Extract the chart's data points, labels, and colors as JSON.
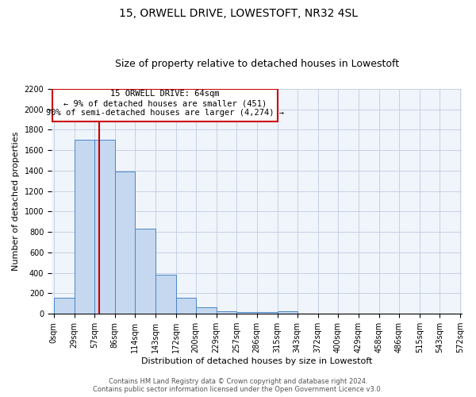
{
  "title": "15, ORWELL DRIVE, LOWESTOFT, NR32 4SL",
  "subtitle": "Size of property relative to detached houses in Lowestoft",
  "xlabel": "Distribution of detached houses by size in Lowestoft",
  "ylabel": "Number of detached properties",
  "bar_values": [
    155,
    1700,
    1700,
    1390,
    830,
    385,
    160,
    65,
    25,
    20,
    20,
    25,
    0,
    0,
    0,
    0,
    0,
    0,
    0,
    0
  ],
  "bin_edges": [
    0,
    29,
    57,
    86,
    114,
    143,
    172,
    200,
    229,
    257,
    286,
    315,
    343,
    372,
    400,
    429,
    458,
    486,
    515,
    543,
    572
  ],
  "tick_labels": [
    "0sqm",
    "29sqm",
    "57sqm",
    "86sqm",
    "114sqm",
    "143sqm",
    "172sqm",
    "200sqm",
    "229sqm",
    "257sqm",
    "286sqm",
    "315sqm",
    "343sqm",
    "372sqm",
    "400sqm",
    "429sqm",
    "458sqm",
    "486sqm",
    "515sqm",
    "543sqm",
    "572sqm"
  ],
  "bar_color": "#c5d8f0",
  "bar_edge_color": "#4a86c8",
  "vline_x": 64,
  "vline_color": "#cc0000",
  "annotation_text_line1": "15 ORWELL DRIVE: 64sqm",
  "annotation_text_line2": "← 9% of detached houses are smaller (451)",
  "annotation_text_line3": "90% of semi-detached houses are larger (4,274) →",
  "annotation_box_color": "#cc0000",
  "ylim": [
    0,
    2200
  ],
  "yticks": [
    0,
    200,
    400,
    600,
    800,
    1000,
    1200,
    1400,
    1600,
    1800,
    2000,
    2200
  ],
  "footer_line1": "Contains HM Land Registry data © Crown copyright and database right 2024.",
  "footer_line2": "Contains public sector information licensed under the Open Government Licence v3.0.",
  "grid_color": "#c0cce0",
  "bg_color": "#f0f4fb",
  "title_fontsize": 10,
  "subtitle_fontsize": 9,
  "axis_label_fontsize": 8,
  "tick_fontsize": 7,
  "annotation_fontsize": 7.5,
  "footer_fontsize": 6
}
